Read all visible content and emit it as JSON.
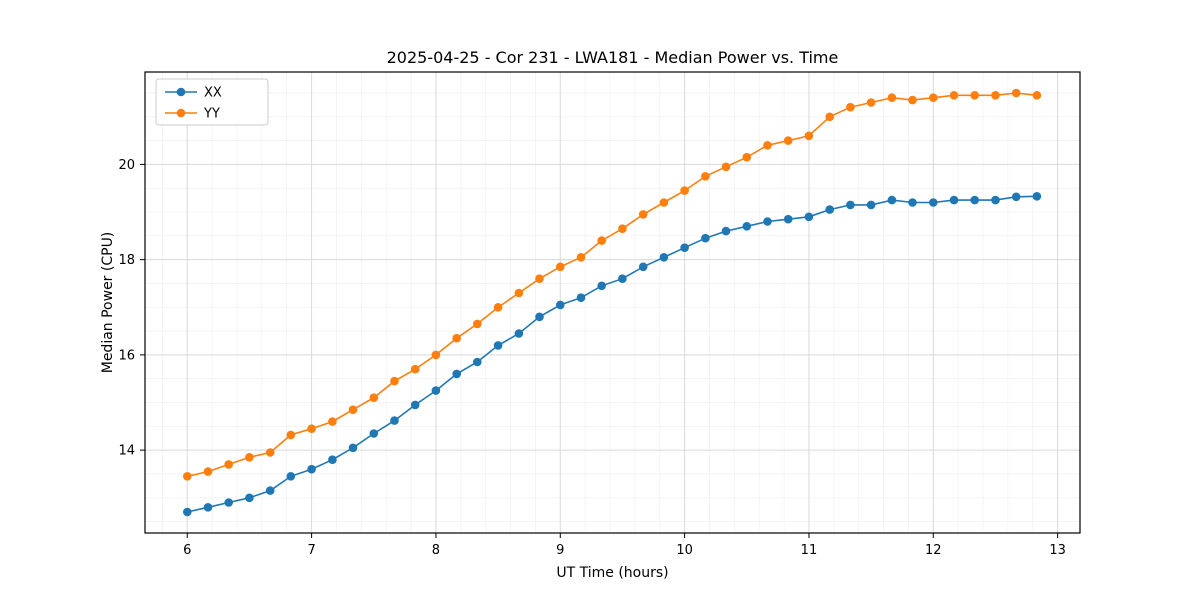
{
  "chart_data": {
    "type": "line",
    "title": "2025-04-25 - Cor 231 - LWA181 - Median Power vs. Time",
    "xlabel": "UT Time (hours)",
    "ylabel": "Median Power (CPU)",
    "xlim": [
      5.66,
      13.18
    ],
    "ylim": [
      12.26,
      21.94
    ],
    "xticks": [
      6,
      7,
      8,
      9,
      10,
      11,
      12,
      13
    ],
    "yticks": [
      14,
      16,
      18,
      20
    ],
    "grid": true,
    "minor_grid": true,
    "x_minor_step": 0.2,
    "y_minor_step": 0.5,
    "legend_position": "upper left",
    "marker": "circle",
    "x": [
      6.0,
      6.167,
      6.333,
      6.5,
      6.667,
      6.833,
      7.0,
      7.167,
      7.333,
      7.5,
      7.667,
      7.833,
      8.0,
      8.167,
      8.333,
      8.5,
      8.667,
      8.833,
      9.0,
      9.167,
      9.333,
      9.5,
      9.667,
      9.833,
      10.0,
      10.167,
      10.333,
      10.5,
      10.667,
      10.833,
      11.0,
      11.167,
      11.333,
      11.5,
      11.667,
      11.833,
      12.0,
      12.167,
      12.333,
      12.5,
      12.667,
      12.833
    ],
    "series": [
      {
        "name": "XX",
        "color": "#1f77b4",
        "values": [
          12.7,
          12.8,
          12.9,
          13.0,
          13.15,
          13.45,
          13.6,
          13.8,
          14.05,
          14.35,
          14.62,
          14.95,
          15.25,
          15.6,
          15.85,
          16.2,
          16.45,
          16.8,
          17.05,
          17.2,
          17.45,
          17.6,
          17.85,
          18.05,
          18.25,
          18.45,
          18.6,
          18.7,
          18.8,
          18.85,
          18.9,
          19.05,
          19.15,
          19.15,
          19.25,
          19.2,
          19.2,
          19.25,
          19.25,
          19.25,
          19.32,
          19.33
        ]
      },
      {
        "name": "YY",
        "color": "#ff7f0e",
        "values": [
          13.45,
          13.55,
          13.7,
          13.85,
          13.95,
          14.32,
          14.45,
          14.6,
          14.85,
          15.1,
          15.45,
          15.7,
          16.0,
          16.35,
          16.65,
          17.0,
          17.3,
          17.6,
          17.85,
          18.05,
          18.4,
          18.65,
          18.95,
          19.2,
          19.45,
          19.75,
          19.95,
          20.15,
          20.4,
          20.5,
          20.6,
          21.0,
          21.2,
          21.3,
          21.4,
          21.35,
          21.4,
          21.45,
          21.45,
          21.45,
          21.5,
          21.45
        ]
      }
    ],
    "grid_color": "#d9d9d9",
    "minor_grid_color": "#f2f2f2",
    "frame_color": "#000000"
  }
}
